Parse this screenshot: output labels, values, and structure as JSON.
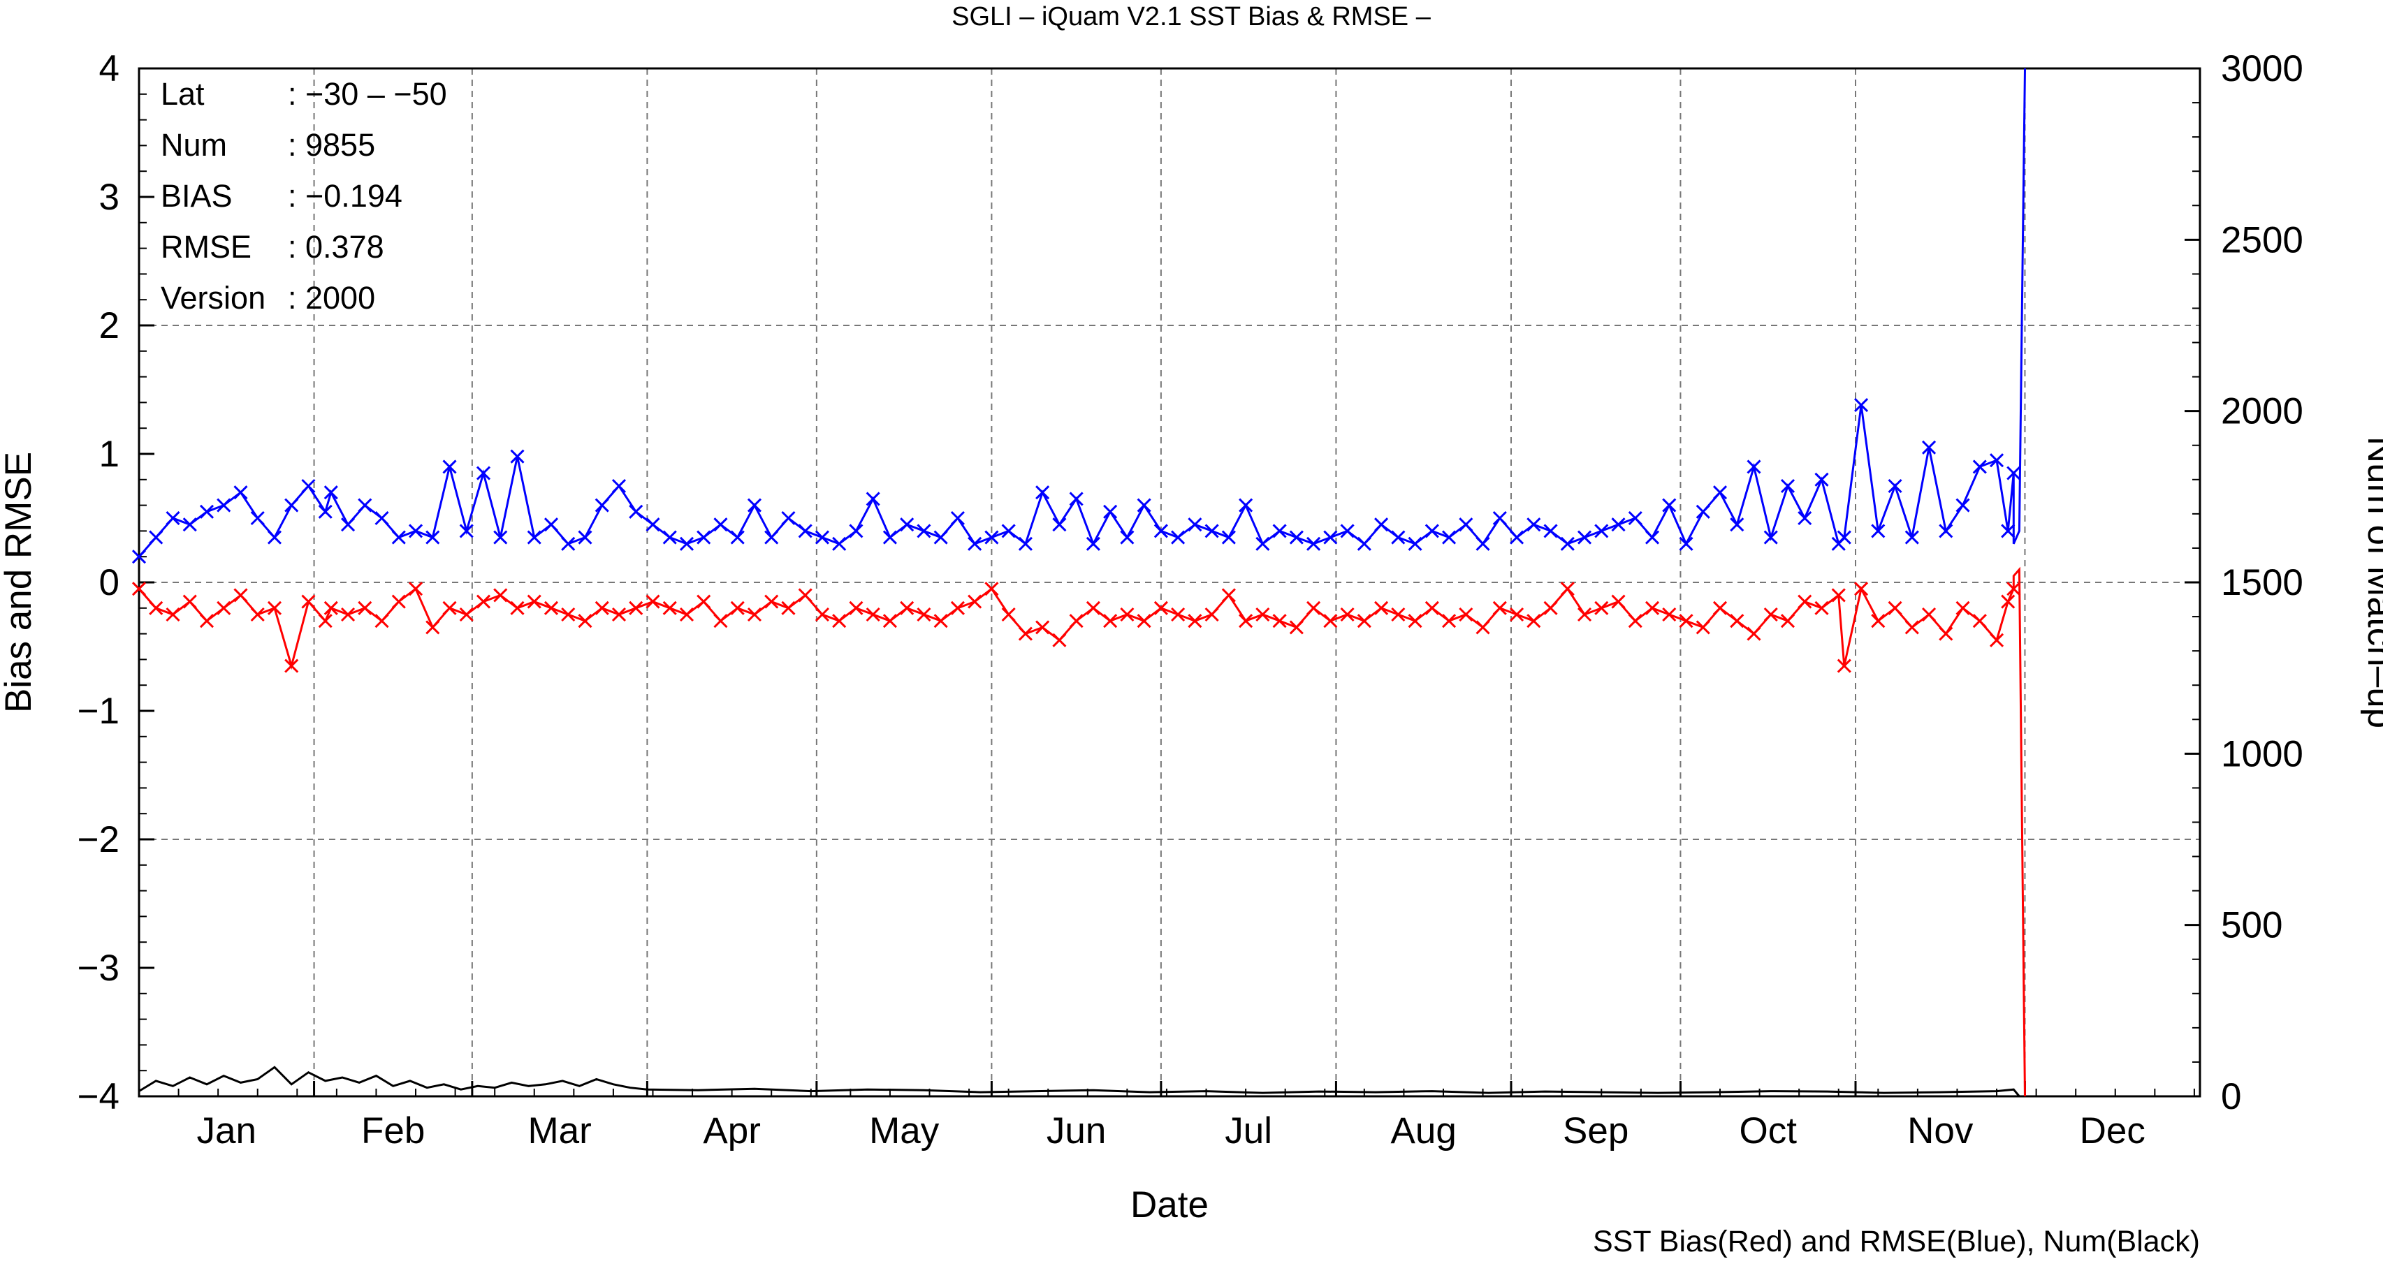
{
  "title": "SGLI – iQuam V2.1 SST Bias & RMSE  –",
  "footer": "SST Bias(Red) and RMSE(Blue), Num(Black)",
  "info": [
    {
      "key": "Lat",
      "value": ": −30 – −50"
    },
    {
      "key": "Num",
      "value": ": 9855"
    },
    {
      "key": "BIAS",
      "value": ": −0.194"
    },
    {
      "key": "RMSE",
      "value": ": 0.378"
    },
    {
      "key": "Version",
      "value": ": 2000"
    }
  ],
  "chart_data": {
    "type": "line",
    "xlabel": "Date",
    "ylabel": "Bias and RMSE",
    "y2label": "Num of Match–up",
    "x_unit": "day of year",
    "xlim": [
      1,
      366
    ],
    "ylim": [
      -4,
      4
    ],
    "y2lim": [
      0,
      3000
    ],
    "yticks": [
      "−4",
      "−3",
      "−2",
      "−1",
      "0",
      "1",
      "2",
      "3",
      "4"
    ],
    "y2ticks": [
      "0",
      "500",
      "1000",
      "1500",
      "2000",
      "2500",
      "3000"
    ],
    "months": [
      "Jan",
      "Feb",
      "Mar",
      "Apr",
      "May",
      "Jun",
      "Jul",
      "Aug",
      "Sep",
      "Oct",
      "Nov",
      "Dec"
    ],
    "month_starts": [
      1,
      32,
      60,
      91,
      121,
      152,
      182,
      213,
      244,
      274,
      305,
      335
    ],
    "grid": true,
    "colors": {
      "bias": "#ff0000",
      "rmse": "#0000ff",
      "num": "#000000"
    },
    "series": [
      {
        "key": "rmse",
        "marker": "x",
        "x": [
          1,
          4,
          7,
          10,
          13,
          16,
          19,
          22,
          25,
          28,
          31,
          34,
          35,
          38,
          41,
          44,
          47,
          50,
          53,
          56,
          59,
          62,
          65,
          68,
          71,
          74,
          77,
          80,
          83,
          86,
          89,
          92,
          95,
          98,
          101,
          104,
          107,
          110,
          113,
          116,
          119,
          122,
          125,
          128,
          131,
          134,
          137,
          140,
          143,
          146,
          149,
          152,
          155,
          158,
          161,
          164,
          167,
          170,
          173,
          176,
          179,
          182,
          185,
          188,
          191,
          194,
          197,
          200,
          203,
          206,
          209,
          212,
          215,
          218,
          221,
          224,
          227,
          230,
          233,
          236,
          239,
          242,
          245,
          248,
          251,
          254,
          257,
          260,
          263,
          266,
          269,
          272,
          275,
          278,
          281,
          284,
          287,
          290,
          293,
          296,
          299,
          302,
          303,
          306,
          309,
          312,
          315,
          318,
          321,
          324,
          327,
          330,
          332,
          333
        ],
        "y": [
          0.2,
          0.35,
          0.5,
          0.45,
          0.55,
          0.6,
          0.7,
          0.5,
          0.35,
          0.6,
          0.75,
          0.55,
          0.7,
          0.45,
          0.6,
          0.5,
          0.35,
          0.4,
          0.35,
          0.9,
          0.4,
          0.85,
          0.35,
          0.98,
          0.35,
          0.45,
          0.3,
          0.35,
          0.6,
          0.75,
          0.55,
          0.45,
          0.35,
          0.3,
          0.35,
          0.45,
          0.35,
          0.6,
          0.35,
          0.5,
          0.4,
          0.35,
          0.3,
          0.4,
          0.65,
          0.35,
          0.45,
          0.4,
          0.35,
          0.5,
          0.3,
          0.35,
          0.4,
          0.3,
          0.7,
          0.45,
          0.65,
          0.3,
          0.55,
          0.35,
          0.6,
          0.4,
          0.35,
          0.45,
          0.4,
          0.35,
          0.6,
          0.3,
          0.4,
          0.35,
          0.3,
          0.35,
          0.4,
          0.3,
          0.45,
          0.35,
          0.3,
          0.4,
          0.35,
          0.45,
          0.3,
          0.5,
          0.35,
          0.45,
          0.4,
          0.3,
          0.35,
          0.4,
          0.45,
          0.5,
          0.35,
          0.6,
          0.3,
          0.55,
          0.7,
          0.45,
          0.9,
          0.35,
          0.75,
          0.5,
          0.8,
          0.3,
          0.35,
          1.38,
          0.4,
          0.75,
          0.35,
          1.05,
          0.4,
          0.6,
          0.9,
          0.95,
          0.4,
          0.85
        ],
        "end_x": [
          333,
          334,
          335
        ],
        "end_y": [
          0.3,
          0.4,
          4.0
        ]
      },
      {
        "key": "bias",
        "marker": "x",
        "x": [
          1,
          4,
          7,
          10,
          13,
          16,
          19,
          22,
          25,
          28,
          31,
          34,
          35,
          38,
          41,
          44,
          47,
          50,
          53,
          56,
          59,
          62,
          65,
          68,
          71,
          74,
          77,
          80,
          83,
          86,
          89,
          92,
          95,
          98,
          101,
          104,
          107,
          110,
          113,
          116,
          119,
          122,
          125,
          128,
          131,
          134,
          137,
          140,
          143,
          146,
          149,
          152,
          155,
          158,
          161,
          164,
          167,
          170,
          173,
          176,
          179,
          182,
          185,
          188,
          191,
          194,
          197,
          200,
          203,
          206,
          209,
          212,
          215,
          218,
          221,
          224,
          227,
          230,
          233,
          236,
          239,
          242,
          245,
          248,
          251,
          254,
          257,
          260,
          263,
          266,
          269,
          272,
          275,
          278,
          281,
          284,
          287,
          290,
          293,
          296,
          299,
          302,
          303,
          306,
          309,
          312,
          315,
          318,
          321,
          324,
          327,
          330,
          332,
          333
        ],
        "y": [
          -0.05,
          -0.2,
          -0.25,
          -0.15,
          -0.3,
          -0.2,
          -0.1,
          -0.25,
          -0.2,
          -0.65,
          -0.15,
          -0.3,
          -0.2,
          -0.25,
          -0.2,
          -0.3,
          -0.15,
          -0.05,
          -0.35,
          -0.2,
          -0.25,
          -0.15,
          -0.1,
          -0.2,
          -0.15,
          -0.2,
          -0.25,
          -0.3,
          -0.2,
          -0.25,
          -0.2,
          -0.15,
          -0.2,
          -0.25,
          -0.15,
          -0.3,
          -0.2,
          -0.25,
          -0.15,
          -0.2,
          -0.1,
          -0.25,
          -0.3,
          -0.2,
          -0.25,
          -0.3,
          -0.2,
          -0.25,
          -0.3,
          -0.2,
          -0.15,
          -0.05,
          -0.25,
          -0.4,
          -0.35,
          -0.45,
          -0.3,
          -0.2,
          -0.3,
          -0.25,
          -0.3,
          -0.2,
          -0.25,
          -0.3,
          -0.25,
          -0.1,
          -0.3,
          -0.25,
          -0.3,
          -0.35,
          -0.2,
          -0.3,
          -0.25,
          -0.3,
          -0.2,
          -0.25,
          -0.3,
          -0.2,
          -0.3,
          -0.25,
          -0.35,
          -0.2,
          -0.25,
          -0.3,
          -0.2,
          -0.05,
          -0.25,
          -0.2,
          -0.15,
          -0.3,
          -0.2,
          -0.25,
          -0.3,
          -0.35,
          -0.2,
          -0.3,
          -0.4,
          -0.25,
          -0.3,
          -0.15,
          -0.2,
          -0.1,
          -0.65,
          -0.05,
          -0.3,
          -0.2,
          -0.35,
          -0.25,
          -0.4,
          -0.2,
          -0.3,
          -0.45,
          -0.15,
          -0.05
        ],
        "end_x": [
          333,
          334,
          335
        ],
        "end_y": [
          0.05,
          0.1,
          -4.0
        ]
      },
      {
        "key": "num",
        "axis": "right",
        "x": [
          1,
          4,
          7,
          10,
          13,
          16,
          19,
          22,
          25,
          28,
          31,
          34,
          37,
          40,
          43,
          46,
          49,
          52,
          55,
          58,
          61,
          64,
          67,
          70,
          73,
          76,
          79,
          82,
          85,
          88,
          91,
          100,
          110,
          120,
          130,
          140,
          150,
          160,
          170,
          180,
          190,
          200,
          210,
          220,
          230,
          240,
          250,
          260,
          270,
          280,
          290,
          300,
          310,
          320,
          330,
          333,
          334
        ],
        "y": [
          15,
          45,
          30,
          55,
          35,
          60,
          40,
          50,
          85,
          35,
          70,
          45,
          55,
          40,
          60,
          30,
          45,
          25,
          35,
          20,
          30,
          25,
          40,
          30,
          35,
          45,
          30,
          50,
          35,
          25,
          20,
          18,
          22,
          15,
          20,
          18,
          12,
          15,
          18,
          12,
          15,
          10,
          14,
          12,
          15,
          10,
          14,
          12,
          10,
          12,
          15,
          14,
          10,
          12,
          15,
          20,
          0
        ]
      }
    ]
  }
}
